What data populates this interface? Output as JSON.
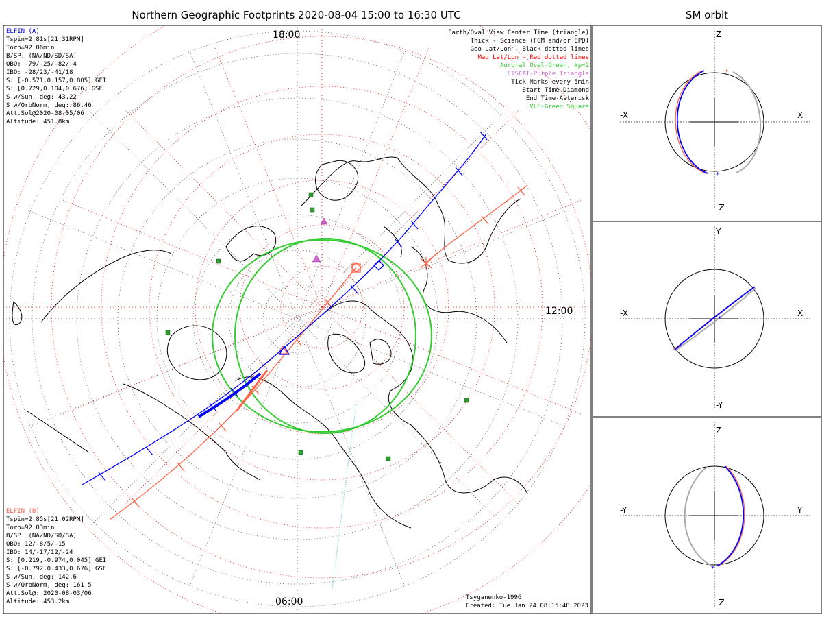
{
  "main_title": "Northern Geographic Footprints 2020-08-04 15:00 to 16:30 UTC",
  "side_title": "SM orbit",
  "elfin_a": {
    "name": "ELFIN (A)",
    "color": "#0000ff",
    "lines": [
      "Tspin=2.81s[21.31RPM]",
      "Torb=92.06min",
      "B/SP: (NA/ND/SD/SA)",
      "OBO: -79/-25/-82/-4",
      "IBO: -28/23/-41/18",
      "S: [-0.571,0.157,0.805] GEI",
      "S: [0.729,0.104,0.676] GSE",
      "S w/Sun, deg: 43.22",
      "S w/OrbNorm, deg: 86.46",
      "Att.Sol@2020-08-05/06",
      "Altitude: 451.8km"
    ]
  },
  "elfin_b": {
    "name": "ELFIN (B)",
    "color": "#ff6347",
    "lines": [
      "Tspin=2.85s[21.02RPM]",
      "Torb=92.03min",
      "B/SP: (NA/ND/SD/SA)",
      "OBO: 12/-8/5/-15",
      "IBO: 14/-17/12/-24",
      "S: [0.219,-0.974,0.045] GEI",
      "S: [-0.792,0.433,0.676] GSE",
      "S w/Sun, deg: 142.6",
      "S w/OrbNorm, deg: 161.5",
      "Att.Sol@: 2020-08-03/06",
      "Altitude: 453.2km"
    ]
  },
  "legend": [
    {
      "text": "Earth/Oval View Center Time (triangle)",
      "color": "#000000"
    },
    {
      "text": "Thick - Science (FGM and/or EPD)",
      "color": "#000000"
    },
    {
      "text": "Geo Lat/Lon - Black dotted lines",
      "color": "#000000"
    },
    {
      "text": "Mag Lat/Lon - Red dotted lines",
      "color": "#ff0000"
    },
    {
      "text": "Auroral Oval-Green, kp=2",
      "color": "#33cc33"
    },
    {
      "text": "EISCAT-Purple Triangle",
      "color": "#cc66cc"
    },
    {
      "text": "Tick Marks every 5min",
      "color": "#000000"
    },
    {
      "text": "Start Time-Diamond",
      "color": "#000000"
    },
    {
      "text": "End Time-Asterisk",
      "color": "#000000"
    },
    {
      "text": "VLF-Green Square",
      "color": "#33cc33"
    }
  ],
  "time_labels": {
    "top": "18:00",
    "right": "12:00",
    "bottom": "06:00"
  },
  "footer": {
    "model": "Tsyganenko-1996",
    "created": "Created: Tue Jan 24 08:15:48 2023"
  },
  "chart_data": [
    {
      "type": "polar-map",
      "title": "Northern Geographic Footprints 2020-08-04 15:00 to 16:30 UTC",
      "projection": "north-polar-stereographic",
      "geo_lat_circles_deg": [
        80,
        70,
        60,
        50,
        40,
        30,
        20,
        10,
        0
      ],
      "mag_lat_circles_deg": [
        80,
        70,
        60,
        50,
        40,
        30,
        20,
        10,
        0
      ],
      "time_labels": [
        "18:00",
        "12:00",
        "06:00"
      ],
      "auroral_oval_kp": 2,
      "tick_interval_min": 5,
      "series": [
        {
          "name": "ELFIN (A)",
          "color": "#0000ff",
          "start": "diamond",
          "end": "asterisk"
        },
        {
          "name": "ELFIN (B)",
          "color": "#ff6347",
          "start": "diamond",
          "end": "asterisk"
        }
      ]
    },
    {
      "type": "orbit-projection",
      "title": "SM orbit",
      "axes": [
        "-X",
        "X",
        "Z",
        "-Z"
      ]
    },
    {
      "type": "orbit-projection",
      "axes": [
        "-X",
        "X",
        "Y",
        "-Y"
      ]
    },
    {
      "type": "orbit-projection",
      "axes": [
        "-Y",
        "Y",
        "Z",
        "-Z"
      ]
    }
  ],
  "panels": [
    {
      "left": "-X",
      "right": "X",
      "top": "Z",
      "bottom": "-Z"
    },
    {
      "left": "-X",
      "right": "X",
      "top": "Y",
      "bottom": "-Y"
    },
    {
      "left": "-Y",
      "right": "Y",
      "top": "Z",
      "bottom": "-Z"
    }
  ]
}
